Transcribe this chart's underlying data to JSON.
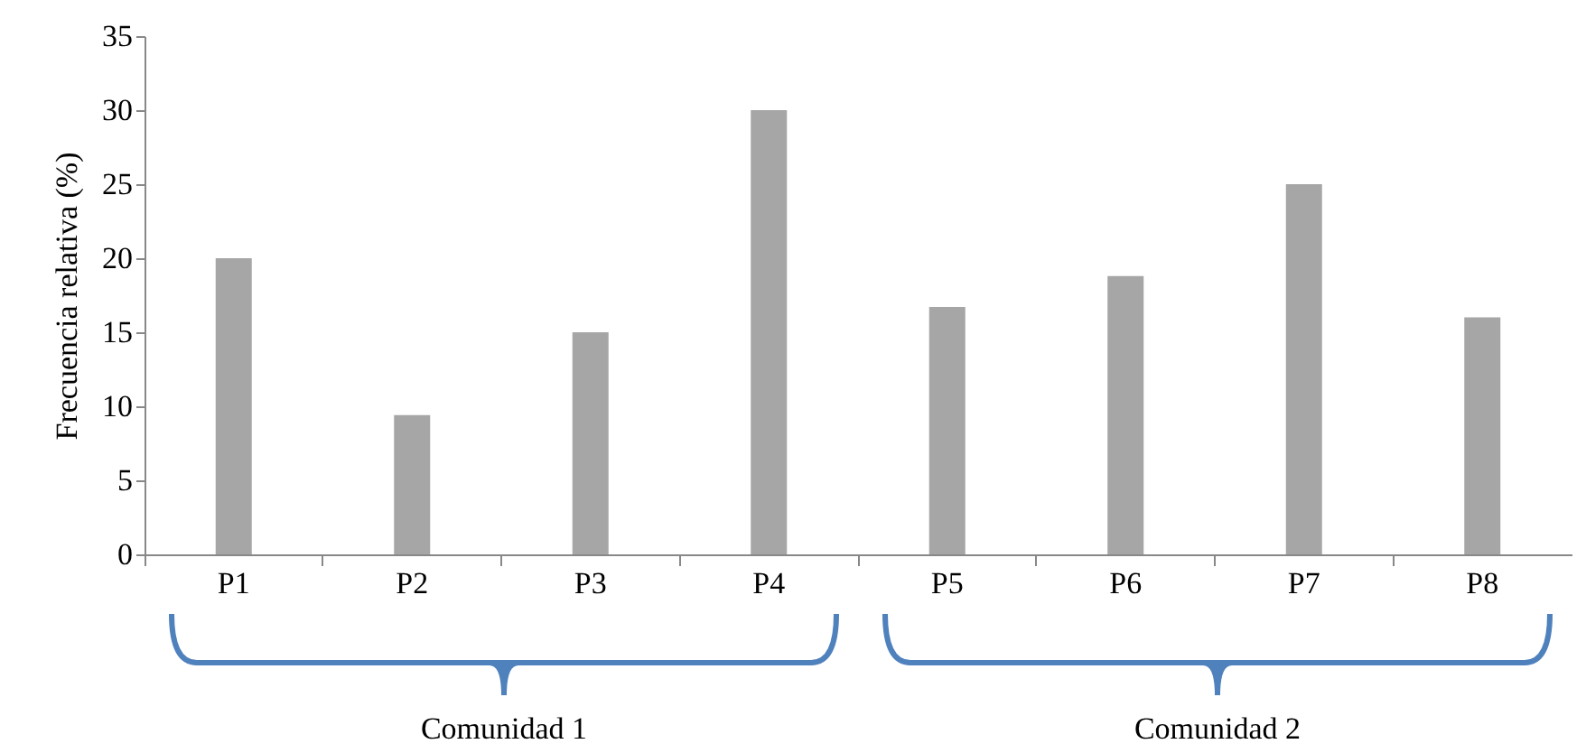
{
  "chart_data": {
    "type": "bar",
    "ylabel": "Frecuencia relativa (%)",
    "categories": [
      "P1",
      "P2",
      "P3",
      "P4",
      "P5",
      "P6",
      "P7",
      "P8"
    ],
    "values": [
      20,
      9.4,
      15,
      30,
      16.7,
      18.8,
      25,
      16
    ],
    "color": "#a6a6a6",
    "ylim": [
      0,
      35
    ],
    "yticks": [
      0,
      5,
      10,
      15,
      20,
      25,
      30,
      35
    ],
    "grid": false,
    "annotations": [
      "Comunidad 1",
      "Comunidad 2"
    ]
  }
}
